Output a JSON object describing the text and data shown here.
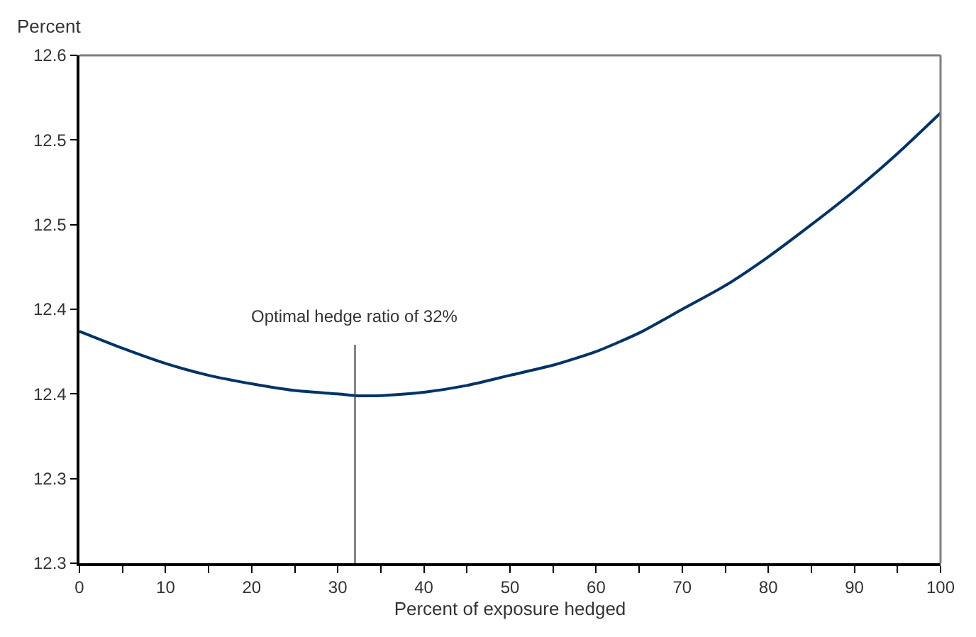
{
  "chart_data": {
    "type": "line",
    "xlabel": "Percent of exposure hedged",
    "ylabel": "Percent",
    "x": [
      0,
      5,
      10,
      15,
      20,
      25,
      30,
      32,
      35,
      40,
      45,
      50,
      55,
      60,
      65,
      70,
      75,
      80,
      85,
      90,
      95,
      100
    ],
    "series": [
      {
        "color": "#003366",
        "values": [
          12.387,
          12.377,
          12.368,
          12.361,
          12.356,
          12.352,
          12.35,
          12.349,
          12.349,
          12.351,
          12.355,
          12.361,
          12.367,
          12.375,
          12.386,
          12.4,
          12.414,
          12.431,
          12.45,
          12.47,
          12.492,
          12.516
        ]
      }
    ],
    "xlim": [
      0,
      100
    ],
    "ylim": [
      12.25,
      12.55
    ],
    "xticks": [
      0,
      {
        "value": 5,
        "label": null
      },
      10,
      {
        "value": 15,
        "label": null
      },
      20,
      {
        "value": 25,
        "label": null
      },
      30,
      {
        "value": 35,
        "label": null
      },
      40,
      {
        "value": 45,
        "label": null
      },
      50,
      {
        "value": 55,
        "label": null
      },
      60,
      {
        "value": 65,
        "label": null
      },
      70,
      {
        "value": 75,
        "label": null
      },
      80,
      {
        "value": 85,
        "label": null
      },
      90,
      {
        "value": 95,
        "label": null
      },
      100
    ],
    "yticks": [
      {
        "value": 12.25,
        "label": "12.3"
      },
      {
        "value": 12.3,
        "label": "12.3"
      },
      {
        "value": 12.35,
        "label": "12.4"
      },
      {
        "value": 12.4,
        "label": "12.4"
      },
      {
        "value": 12.45,
        "label": "12.5"
      },
      {
        "value": 12.5,
        "label": "12.5"
      },
      {
        "value": 12.55,
        "label": "12.6"
      }
    ],
    "ref_lines": [
      {
        "axis": "x",
        "value": 32,
        "label": "Optimal hedge ratio of 32%",
        "color": "#404040"
      }
    ],
    "marker": "none",
    "line_style": "solid"
  }
}
